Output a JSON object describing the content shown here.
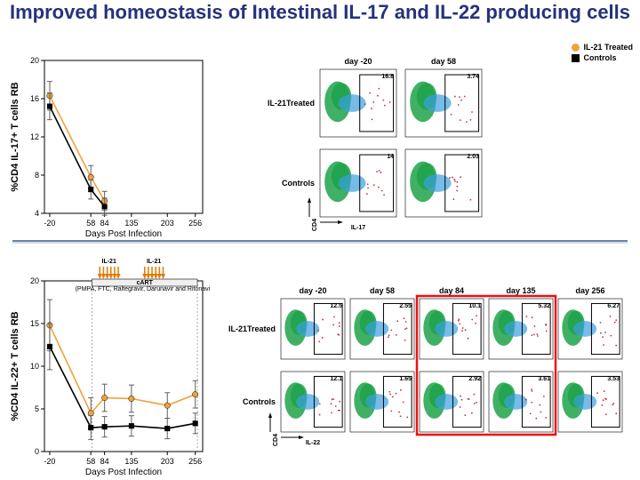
{
  "title": "Improved homeostasis of Intestinal IL-17 and IL-22 producing cells",
  "legend": {
    "treated": {
      "label": "IL-21 Treated",
      "color": "#f2a13a"
    },
    "controls": {
      "label": "Controls",
      "color": "#000000"
    }
  },
  "divider_color": "#6f86a3",
  "chart_top": {
    "type": "line",
    "ylabel": "%CD4 IL-17+ T cells RB",
    "xlabel": "Days Post Infection",
    "xticks": [
      -20,
      58,
      84,
      135,
      203,
      256
    ],
    "xlim": [
      -30,
      270
    ],
    "ylim": [
      4,
      20
    ],
    "yticks": [
      4,
      8,
      12,
      16,
      20
    ],
    "treated": {
      "color": "#f2a13a",
      "x": [
        -20,
        58,
        84
      ],
      "y": [
        16.3,
        7.8,
        5.3
      ],
      "err": [
        1.5,
        1.2,
        1.0
      ]
    },
    "control": {
      "color": "#000000",
      "x": [
        -20,
        58,
        84
      ],
      "y": [
        15.2,
        6.5,
        4.7
      ],
      "err": [
        1.4,
        1.0,
        0.9
      ]
    }
  },
  "chart_bottom": {
    "type": "line",
    "ylabel": "%CD4 IL-22+ T cells RB",
    "xlabel": "Days Post Infection",
    "xticks": [
      -20,
      58,
      84,
      135,
      203,
      256
    ],
    "xlim": [
      -30,
      270
    ],
    "ylim": [
      0,
      20
    ],
    "yticks": [
      0,
      5,
      10,
      15,
      20
    ],
    "treated": {
      "color": "#f2a13a",
      "x": [
        -20,
        58,
        84,
        135,
        203,
        256
      ],
      "y": [
        14.8,
        4.5,
        6.3,
        6.2,
        5.4,
        6.7
      ],
      "err": [
        3.0,
        1.8,
        1.6,
        1.6,
        1.5,
        1.6
      ]
    },
    "control": {
      "color": "#000000",
      "x": [
        -20,
        58,
        84,
        135,
        203,
        256
      ],
      "y": [
        12.3,
        2.8,
        2.9,
        3.0,
        2.7,
        3.3
      ],
      "err": [
        2.7,
        1.4,
        1.2,
        1.2,
        1.2,
        1.2
      ]
    },
    "treatment_bars": {
      "il21_label": "IL-21",
      "cart_label": "cART",
      "cart_sub": "(PMPA, FTC, Raltegravir, Darunavir and Ritonavir)",
      "arrows1_x": [
        75,
        82,
        89,
        96,
        103,
        110
      ],
      "arrows2_x": [
        160,
        167,
        174,
        181,
        188,
        195
      ],
      "cart_span": [
        60,
        260
      ]
    }
  },
  "flow_top": {
    "y_axis_label": "CD4",
    "x_axis_label": "IL-17",
    "rows": [
      "IL-21Treated",
      "Controls"
    ],
    "col_days": [
      "day -20",
      "day 58"
    ],
    "gate_values": [
      [
        "16.8",
        "3.74"
      ],
      [
        "14",
        "2.03"
      ]
    ]
  },
  "flow_bottom": {
    "y_axis_label": "CD4",
    "x_axis_label": "IL-22",
    "rows": [
      "IL-21Treated",
      "Controls"
    ],
    "col_days": [
      "day -20",
      "day 58",
      "day 84",
      "day 135",
      "day 256"
    ],
    "gate_values": [
      [
        "12.5",
        "2.55",
        "10.1",
        "5.32",
        "6.27"
      ],
      [
        "12.1",
        "1.65",
        "2.92",
        "3.61",
        "3.53"
      ]
    ],
    "highlight_cols": [
      2,
      3
    ]
  },
  "colors": {
    "cloud_main": "#1fa24a",
    "cloud_sub": "#3aa0e0",
    "cloud_scatter": "#c2182e",
    "gridline": "#d0d0d0",
    "errbar": "#606060",
    "redbox": "#ee1111",
    "arrow": "#e07a00"
  }
}
